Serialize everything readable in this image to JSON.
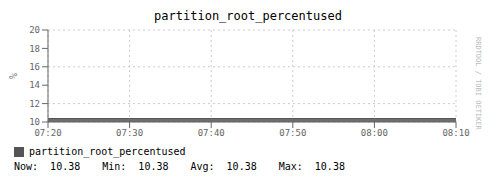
{
  "chart_data": {
    "type": "area",
    "title": "partition_root_percentused",
    "ylabel": "%",
    "categories": [
      "07:20",
      "07:30",
      "07:40",
      "07:50",
      "08:00",
      "08:10"
    ],
    "series": [
      {
        "name": "partition_root_percentused",
        "color": "#555555",
        "values": [
          10.38,
          10.38,
          10.38,
          10.38,
          10.38,
          10.38
        ]
      }
    ],
    "ylim": [
      10,
      20
    ],
    "yticks": [
      10,
      12,
      14,
      16,
      18,
      20
    ],
    "grid": true,
    "legend": "bottom",
    "annotations": [
      "Now:  10.38",
      "Min:  10.38",
      "Avg:  10.38",
      "Max:  10.38",
      "RRDTOOL / TOBI OETIKER"
    ]
  }
}
